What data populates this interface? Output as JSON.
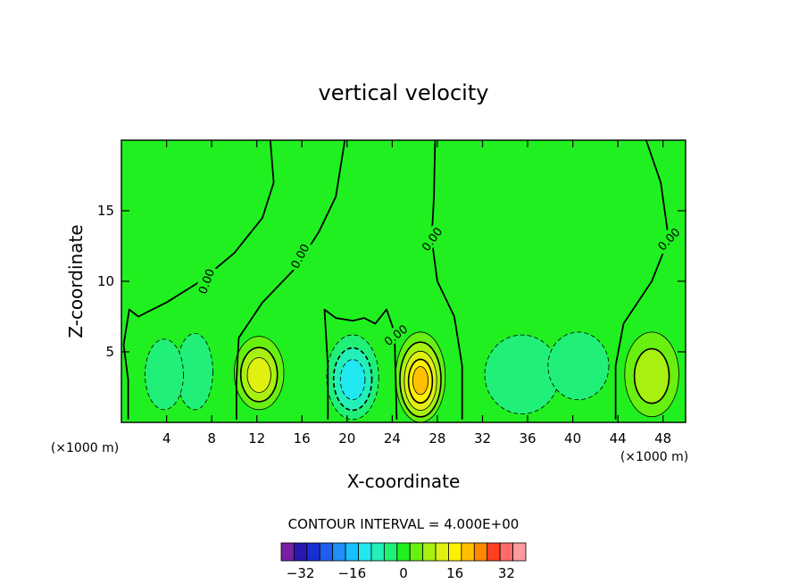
{
  "chart_data": {
    "type": "contour",
    "title": "vertical velocity",
    "xlabel": "X-coordinate",
    "ylabel": "Z-coordinate",
    "x_unit_left": "(×1000 m)",
    "x_unit_right": "(×1000 m)",
    "xlim": [
      0,
      50
    ],
    "ylim": [
      0,
      20
    ],
    "x_ticks": [
      4,
      8,
      12,
      16,
      20,
      24,
      28,
      32,
      36,
      40,
      44,
      48
    ],
    "y_ticks": [
      5,
      10,
      15
    ],
    "contour_interval_text": "CONTOUR INTERVAL = 4.000E+00",
    "contour_interval": 4,
    "contour_labels": [
      "0.00",
      "0.00",
      "0.00",
      "0.00",
      "0.00"
    ],
    "contour_label_positions": [
      [
        7.5,
        10.0
      ],
      [
        15.8,
        11.8
      ],
      [
        27.5,
        13.0
      ],
      [
        48.5,
        13.0
      ],
      [
        24.3,
        6.2
      ]
    ],
    "colorbar": {
      "levels": [
        -36,
        -32,
        -28,
        -24,
        -20,
        -16,
        -12,
        -8,
        -4,
        0,
        4,
        8,
        12,
        16,
        20,
        24,
        28,
        32,
        36
      ],
      "tick_values": [
        -32,
        -16,
        0,
        16,
        32
      ],
      "tick_labels": [
        "−32",
        "−16",
        "0",
        "16",
        "32"
      ],
      "colors": [
        "#7a1fa2",
        "#2a18b0",
        "#1a2fd0",
        "#1f5ff0",
        "#1f90f8",
        "#18c0ff",
        "#20e8f0",
        "#22f0b8",
        "#20f078",
        "#20f020",
        "#68f010",
        "#a8f010",
        "#e0f010",
        "#fff000",
        "#ffc000",
        "#ff8800",
        "#ff4020",
        "#ff6a6a",
        "#ff9a9a"
      ]
    },
    "features": [
      {
        "kind": "updraft",
        "x": 12.2,
        "z": 3.5,
        "rx": 2.2,
        "rz": 2.6,
        "peak": 13
      },
      {
        "kind": "downdraft",
        "x": 6.5,
        "z": 3.6,
        "rx": 1.6,
        "rz": 2.7,
        "peak": -7
      },
      {
        "kind": "downdraft",
        "x": 3.8,
        "z": 3.4,
        "rx": 1.7,
        "rz": 2.5,
        "peak": -7
      },
      {
        "kind": "downdraft",
        "x": 20.5,
        "z": 3.2,
        "rx": 2.3,
        "rz": 3.0,
        "peak": -12
      },
      {
        "kind": "updraft",
        "x": 26.5,
        "z": 3.2,
        "rx": 2.2,
        "rz": 3.2,
        "peak": 22
      },
      {
        "kind": "downdraft",
        "x": 35.5,
        "z": 3.4,
        "rx": 3.3,
        "rz": 2.8,
        "peak": -5
      },
      {
        "kind": "downdraft",
        "x": 40.5,
        "z": 4.0,
        "rx": 2.7,
        "rz": 2.4,
        "peak": -7
      },
      {
        "kind": "updraft",
        "x": 47.0,
        "z": 3.4,
        "rx": 2.4,
        "rz": 3.0,
        "peak": 11
      }
    ],
    "zero_contours": [
      [
        [
          0.6,
          0.2
        ],
        [
          0.6,
          3.0
        ],
        [
          0.2,
          5.5
        ],
        [
          0.7,
          8.0
        ],
        [
          1.5,
          7.5
        ],
        [
          4,
          8.5
        ],
        [
          7,
          10.0
        ],
        [
          10,
          12.0
        ],
        [
          12.5,
          14.5
        ],
        [
          13.5,
          17.0
        ],
        [
          13.2,
          20
        ]
      ],
      [
        [
          10.2,
          0.2
        ],
        [
          10.2,
          3.0
        ],
        [
          10.4,
          6.0
        ],
        [
          12.5,
          8.5
        ],
        [
          15.5,
          11.0
        ],
        [
          17.5,
          13.5
        ],
        [
          19.0,
          16.0
        ],
        [
          19.8,
          20
        ]
      ],
      [
        [
          18.3,
          0.2
        ],
        [
          18.3,
          4.0
        ],
        [
          18.0,
          8.0
        ],
        [
          19.0,
          7.4
        ],
        [
          20.5,
          7.2
        ],
        [
          21.5,
          7.4
        ],
        [
          22.5,
          7.0
        ],
        [
          23.5,
          8.0
        ],
        [
          24.2,
          6.4
        ],
        [
          24.4,
          0.2
        ]
      ],
      [
        [
          30.2,
          0.2
        ],
        [
          30.2,
          4.0
        ],
        [
          29.5,
          7.5
        ],
        [
          28.0,
          10.0
        ],
        [
          27.5,
          13.0
        ],
        [
          27.7,
          16.0
        ],
        [
          27.8,
          20
        ]
      ],
      [
        [
          43.8,
          0.2
        ],
        [
          43.8,
          4.0
        ],
        [
          44.5,
          7.0
        ],
        [
          47.0,
          10.0
        ],
        [
          48.5,
          13.0
        ],
        [
          47.8,
          17.0
        ],
        [
          46.5,
          20
        ]
      ]
    ]
  }
}
